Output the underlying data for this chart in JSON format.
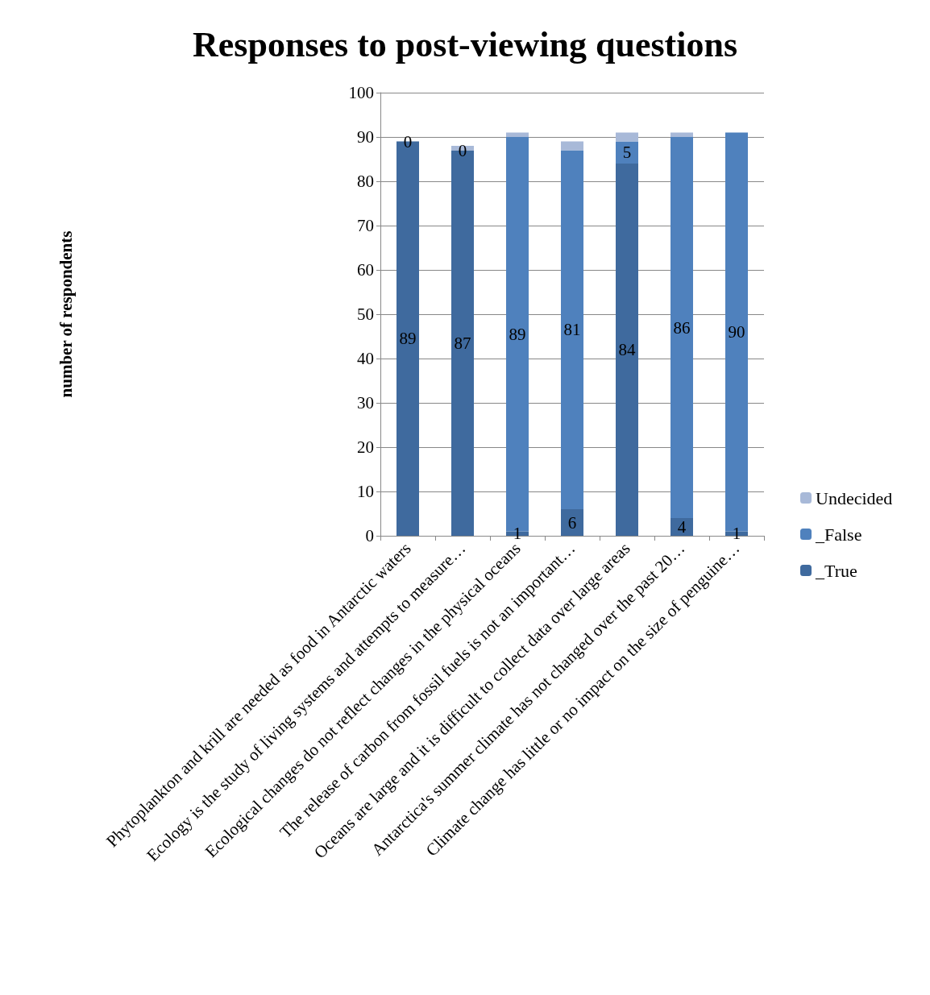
{
  "chart_data": {
    "type": "bar",
    "title": "Responses to post-viewing questions",
    "ylabel": "number of respondents",
    "categories": [
      "Phytoplankton and krill are needed as food in Antarctic waters",
      "Ecology is the study of living systems and attempts to measure…",
      "Ecological changes do not reflect changes in the physical oceans",
      "The release of carbon from fossil fuels is not an important…",
      "Oceans are large and it is difficult to collect data over large areas",
      "Antarctica's summer climate has not changed over the past 20…",
      "Climate change has little or no impact on the size of penguine…"
    ],
    "series": [
      {
        "name": "_True",
        "color": "#3f6a9e",
        "values": [
          89,
          87,
          1,
          6,
          84,
          4,
          1
        ],
        "value_labels": [
          "89",
          "87",
          "1",
          "6",
          "84",
          "4",
          "1"
        ]
      },
      {
        "name": "_False",
        "color": "#4f81bd",
        "values": [
          0,
          0,
          89,
          81,
          5,
          86,
          90
        ],
        "value_labels": [
          "0",
          "0",
          "89",
          "81",
          "5",
          "86",
          "90"
        ]
      },
      {
        "name": "Undecided",
        "color": "#a8b9d8",
        "values": [
          0,
          1,
          1,
          2,
          2,
          1,
          0
        ]
      }
    ],
    "stacked": true,
    "ylim": [
      0,
      100
    ],
    "yticks": [
      0,
      10,
      20,
      30,
      40,
      50,
      60,
      70,
      80,
      90,
      100
    ],
    "grid": "y",
    "legend": "right"
  }
}
